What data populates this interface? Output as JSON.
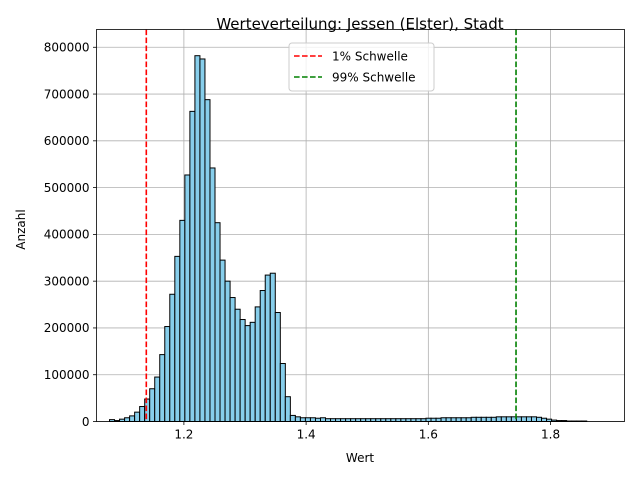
{
  "chart_data": {
    "type": "bar",
    "title": "Werteverteilung: Jessen (Elster), Stadt",
    "xlabel": "Wert",
    "ylabel": "Anzahl",
    "xlim": [
      1.057,
      1.921
    ],
    "ylim": [
      0,
      838000
    ],
    "xticks": [
      1.2,
      1.4,
      1.6,
      1.8
    ],
    "xtick_labels": [
      "1.2",
      "1.4",
      "1.6",
      "1.8"
    ],
    "yticks": [
      0,
      100000,
      200000,
      300000,
      400000,
      500000,
      600000,
      700000,
      800000
    ],
    "ytick_labels": [
      "0",
      "100000",
      "200000",
      "300000",
      "400000",
      "500000",
      "600000",
      "700000",
      "800000"
    ],
    "grid": true,
    "legend_position": "top-center",
    "bar_color": "#87ceeb",
    "bar_edge_color": "#000000",
    "bins": {
      "start": 1.0783,
      "width": 0.00822,
      "counts": [
        4000,
        2000,
        5000,
        8000,
        12000,
        20000,
        32000,
        48000,
        70000,
        95000,
        143000,
        203000,
        272000,
        353000,
        430000,
        527000,
        663000,
        782000,
        775000,
        688000,
        542000,
        425000,
        345000,
        300000,
        265000,
        240000,
        218000,
        205000,
        212000,
        245000,
        280000,
        313000,
        317000,
        233000,
        124000,
        53000,
        13000,
        10000,
        8000,
        8000,
        8000,
        7000,
        8000,
        6000,
        6000,
        6000,
        6000,
        6000,
        6000,
        6000,
        6000,
        6000,
        6000,
        6000,
        6000,
        6000,
        6000,
        6000,
        6000,
        6000,
        6000,
        6000,
        6000,
        7000,
        7000,
        7000,
        8000,
        8000,
        8000,
        8000,
        8000,
        8000,
        9000,
        9000,
        9000,
        9000,
        9000,
        10000,
        10000,
        10000,
        10000,
        10000,
        10000,
        10000,
        10000,
        9000,
        7000,
        5000,
        3000,
        2000,
        2000,
        1000,
        1000,
        1000,
        1000
      ]
    },
    "thresholds": [
      {
        "name": "1% Schwelle",
        "value": 1.1385,
        "color": "#ff0000"
      },
      {
        "name": "99% Schwelle",
        "value": 1.7435,
        "color": "#008000"
      }
    ]
  }
}
